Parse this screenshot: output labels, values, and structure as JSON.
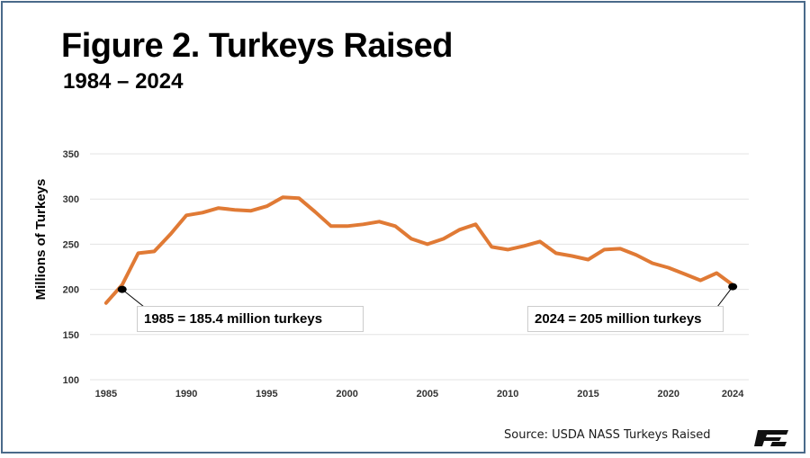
{
  "title": "Figure 2. Turkeys Raised",
  "subtitle": "1984 – 2024",
  "source": "Source: USDA NASS Turkeys Raised",
  "logo_text": "FB",
  "colors": {
    "line": "#E07A35",
    "grid": "#e3e3e3",
    "frame": "#4a6a8a",
    "marker": "#000000"
  },
  "annotations": [
    {
      "text": "1985 = 185.4 million turkeys",
      "x": 1986,
      "y": 200
    },
    {
      "text": "2024 = 205 million turkeys",
      "x": 2024,
      "y": 203
    }
  ],
  "chart_data": {
    "type": "line",
    "title": "Figure 2. Turkeys Raised",
    "subtitle": "1984 – 2024",
    "xlabel": "",
    "ylabel": "Millions of Turkeys",
    "x_ticks": [
      "1985",
      "1990",
      "1995",
      "2000",
      "2005",
      "2010",
      "2015",
      "2020",
      "2024"
    ],
    "y_ticks": [
      "100",
      "150",
      "200",
      "250",
      "300",
      "350"
    ],
    "ylim": [
      100,
      350
    ],
    "xlim": [
      1984,
      2025
    ],
    "grid": true,
    "series": [
      {
        "x": [
          1985,
          1986,
          1987,
          1988,
          1989,
          1990,
          1991,
          1992,
          1993,
          1994,
          1995,
          1996,
          1997,
          1998,
          1999,
          2000,
          2001,
          2002,
          2003,
          2004,
          2005,
          2006,
          2007,
          2008,
          2009,
          2010,
          2011,
          2012,
          2013,
          2014,
          2015,
          2016,
          2017,
          2018,
          2019,
          2020,
          2021,
          2022,
          2023,
          2024
        ],
        "values": [
          185,
          205,
          240,
          242,
          261,
          282,
          285,
          290,
          288,
          287,
          292,
          302,
          301,
          286,
          270,
          270,
          272,
          275,
          270,
          256,
          250,
          256,
          266,
          272,
          247,
          244,
          248,
          253,
          240,
          237,
          233,
          244,
          245,
          238,
          229,
          224,
          217,
          210,
          218,
          205
        ]
      }
    ]
  }
}
